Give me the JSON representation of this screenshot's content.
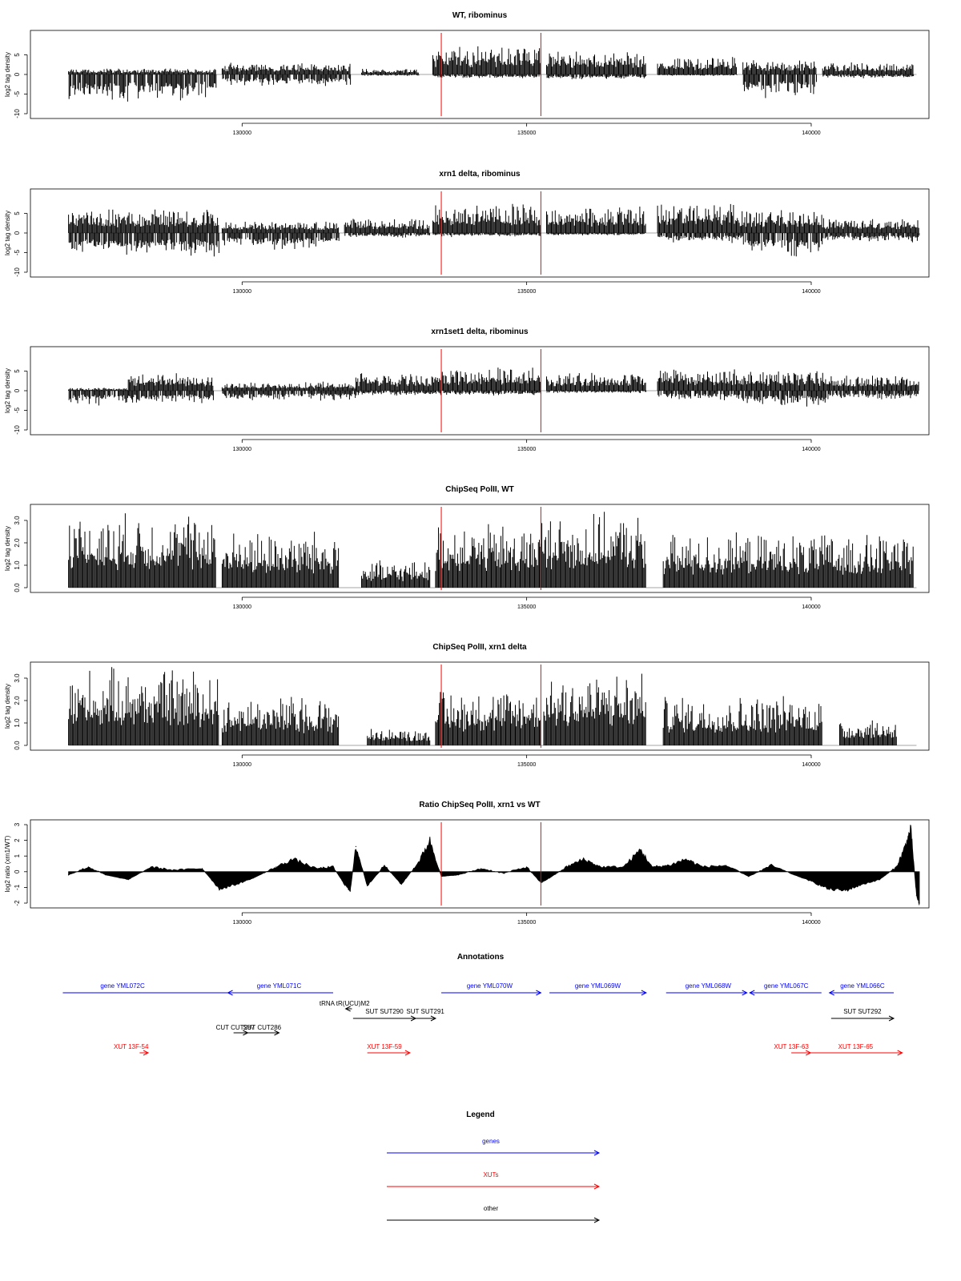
{
  "chart_data": [
    {
      "type": "bar",
      "title": "WT, ribominus",
      "xlabel": "",
      "ylabel": "log2 tag density",
      "x_range": [
        126900,
        141900
      ],
      "ylim": [
        -10,
        10
      ],
      "y_ticks": [
        -10,
        -5,
        0,
        5
      ],
      "x_ticks": [
        130000,
        135000,
        140000
      ],
      "x_tick_labels": [
        "130000",
        "135000",
        "140000"
      ],
      "red_lines": [
        133500,
        135250
      ],
      "segments": [
        {
          "x": [
            126950,
            129550
          ],
          "pos": 1,
          "neg": -6
        },
        {
          "x": [
            129650,
            131900
          ],
          "pos": 2,
          "neg": -2.5
        },
        {
          "x": [
            132100,
            133100
          ],
          "pos": 1,
          "neg": -0.3
        },
        {
          "x": [
            133350,
            135250
          ],
          "pos": 5,
          "neg": -0.8
        },
        {
          "x": [
            135350,
            137100
          ],
          "pos": 4,
          "neg": -1
        },
        {
          "x": [
            137300,
            138700
          ],
          "pos": 3,
          "neg": -0.3
        },
        {
          "x": [
            138800,
            140100
          ],
          "pos": 2.5,
          "neg": -5
        },
        {
          "x": [
            140200,
            141800
          ],
          "pos": 2,
          "neg": -0.8
        }
      ]
    },
    {
      "type": "bar",
      "title": "xrn1 delta, ribominus",
      "xlabel": "",
      "ylabel": "log2 tag density",
      "x_range": [
        126900,
        141900
      ],
      "ylim": [
        -10,
        10
      ],
      "y_ticks": [
        -10,
        -5,
        0,
        5
      ],
      "x_ticks": [
        130000,
        135000,
        140000
      ],
      "x_tick_labels": [
        "130000",
        "135000",
        "140000"
      ],
      "red_lines": [
        133500,
        135250
      ],
      "segments": [
        {
          "x": [
            126950,
            129600
          ],
          "pos": 4,
          "neg": -5
        },
        {
          "x": [
            129650,
            131700
          ],
          "pos": 2,
          "neg": -3.5
        },
        {
          "x": [
            131800,
            133300
          ],
          "pos": 2.5,
          "neg": -1
        },
        {
          "x": [
            133350,
            135250
          ],
          "pos": 5,
          "neg": -0.8
        },
        {
          "x": [
            135350,
            137100
          ],
          "pos": 4.5,
          "neg": -0.5
        },
        {
          "x": [
            137300,
            138800
          ],
          "pos": 5,
          "neg": -2
        },
        {
          "x": [
            138800,
            140200
          ],
          "pos": 4,
          "neg": -5
        },
        {
          "x": [
            140200,
            141900
          ],
          "pos": 2.5,
          "neg": -2
        }
      ]
    },
    {
      "type": "bar",
      "title": "xrn1set1 delta, ribominus",
      "xlabel": "",
      "ylabel": "log2 tag density",
      "x_range": [
        126900,
        141900
      ],
      "ylim": [
        -10,
        10
      ],
      "y_ticks": [
        -10,
        -5,
        0,
        5
      ],
      "x_ticks": [
        130000,
        135000,
        140000
      ],
      "x_tick_labels": [
        "130000",
        "135000",
        "140000"
      ],
      "red_lines": [
        133500,
        135250
      ],
      "segments": [
        {
          "x": [
            126950,
            128000
          ],
          "pos": 0.5,
          "neg": -3
        },
        {
          "x": [
            128000,
            129500
          ],
          "pos": 3,
          "neg": -3
        },
        {
          "x": [
            129650,
            132000
          ],
          "pos": 1.5,
          "neg": -2
        },
        {
          "x": [
            132000,
            133400
          ],
          "pos": 3,
          "neg": -1
        },
        {
          "x": [
            133400,
            135250
          ],
          "pos": 4,
          "neg": -1
        },
        {
          "x": [
            135350,
            137100
          ],
          "pos": 3,
          "neg": -0.5
        },
        {
          "x": [
            137300,
            138800
          ],
          "pos": 4,
          "neg": -2
        },
        {
          "x": [
            138800,
            140300
          ],
          "pos": 3.5,
          "neg": -3.5
        },
        {
          "x": [
            140300,
            141900
          ],
          "pos": 2.5,
          "neg": -2
        }
      ]
    },
    {
      "type": "bar",
      "title": "ChipSeq PolII, WT",
      "xlabel": "",
      "ylabel": "log2 tag density",
      "x_range": [
        126900,
        141900
      ],
      "ylim": [
        0,
        3.5
      ],
      "y_ticks": [
        0.0,
        1.0,
        2.0,
        3.0
      ],
      "y_tick_labels": [
        "0.0",
        "1.0",
        "2.0",
        "3.0"
      ],
      "x_ticks": [
        130000,
        135000,
        140000
      ],
      "x_tick_labels": [
        "130000",
        "135000",
        "140000"
      ],
      "red_lines": [
        133500,
        135250
      ],
      "segments": [
        {
          "x": [
            126950,
            129550
          ],
          "pos": 2.2,
          "neg": 0
        },
        {
          "x": [
            129650,
            131700
          ],
          "pos": 1.7,
          "neg": 0
        },
        {
          "x": [
            132100,
            133300
          ],
          "pos": 0.8,
          "neg": 0
        },
        {
          "x": [
            133400,
            135250
          ],
          "pos": 1.9,
          "neg": 0
        },
        {
          "x": [
            135250,
            137100
          ],
          "pos": 2.2,
          "neg": 0
        },
        {
          "x": [
            137400,
            141800
          ],
          "pos": 1.6,
          "neg": 0
        }
      ]
    },
    {
      "type": "bar",
      "title": "ChipSeq PolII, xrn1 delta",
      "xlabel": "",
      "ylabel": "log2 tag density",
      "x_range": [
        126900,
        141900
      ],
      "ylim": [
        0,
        3.5
      ],
      "y_ticks": [
        0.0,
        1.0,
        2.0,
        3.0
      ],
      "y_tick_labels": [
        "0.0",
        "1.0",
        "2.0",
        "3.0"
      ],
      "x_ticks": [
        130000,
        135000,
        140000
      ],
      "x_tick_labels": [
        "130000",
        "135000",
        "140000"
      ],
      "red_lines": [
        133500,
        135250
      ],
      "segments": [
        {
          "x": [
            126950,
            129600
          ],
          "pos": 2.3,
          "neg": 0
        },
        {
          "x": [
            129650,
            131700
          ],
          "pos": 1.5,
          "neg": 0
        },
        {
          "x": [
            132200,
            133300
          ],
          "pos": 0.5,
          "neg": 0
        },
        {
          "x": [
            133400,
            135250
          ],
          "pos": 1.7,
          "neg": 0
        },
        {
          "x": [
            135300,
            137100
          ],
          "pos": 2.2,
          "neg": 0
        },
        {
          "x": [
            137400,
            140200
          ],
          "pos": 1.5,
          "neg": 0
        },
        {
          "x": [
            140500,
            141500
          ],
          "pos": 0.8,
          "neg": 0
        }
      ]
    },
    {
      "type": "area",
      "title": "Ratio ChipSeq PolII, xrn1 vs WT",
      "xlabel": "",
      "ylabel": "log2 ratio (xrn1/WT)",
      "x_range": [
        126900,
        141900
      ],
      "ylim": [
        -2,
        3
      ],
      "y_ticks": [
        -2,
        -1,
        0,
        1,
        2,
        3
      ],
      "x_ticks": [
        130000,
        135000,
        140000
      ],
      "x_tick_labels": [
        "130000",
        "135000",
        "140000"
      ],
      "red_lines": [
        133500,
        135250
      ],
      "x": [
        126950,
        127300,
        127600,
        128000,
        128400,
        128800,
        129300,
        129600,
        129900,
        130200,
        130600,
        130900,
        131300,
        131600,
        131800,
        131900,
        132000,
        132200,
        132500,
        132800,
        133100,
        133300,
        133500,
        133800,
        134200,
        134600,
        135000,
        135250,
        135400,
        135700,
        136000,
        136300,
        136700,
        137000,
        137200,
        137500,
        137800,
        138100,
        138500,
        138900,
        139300,
        139700,
        140000,
        140300,
        140600,
        140900,
        141200,
        141500,
        141650,
        141750,
        141850,
        141900
      ],
      "y": [
        -0.2,
        0.3,
        -0.2,
        -0.5,
        0.3,
        0.1,
        0.2,
        -1.1,
        -0.8,
        -0.4,
        0.3,
        0.8,
        0.2,
        0.3,
        -0.8,
        -1.2,
        1.6,
        -0.9,
        0.4,
        -0.8,
        0.6,
        2.0,
        -0.3,
        -0.2,
        0.2,
        -0.1,
        0.3,
        -0.7,
        -0.4,
        0.3,
        0.8,
        0.3,
        0.3,
        1.4,
        0.3,
        0.4,
        0.8,
        0.3,
        0.4,
        -0.3,
        0.4,
        -0.2,
        -0.6,
        -1.1,
        -1.2,
        -0.8,
        -0.5,
        0.3,
        1.6,
        2.7,
        -1.5,
        -2.0
      ]
    }
  ],
  "annotations": {
    "title": "Annotations",
    "x_range": [
      126900,
      141900
    ],
    "items": [
      {
        "label": "gene YML072C",
        "x": [
          126850,
          129980
        ],
        "dir": "none",
        "row": 0,
        "color": "#0000ff",
        "label_x": 127900
      },
      {
        "label": "gene YML071C",
        "x": [
          129750,
          131600
        ],
        "dir": "left",
        "row": 0,
        "color": "#0000ff",
        "label_x": 130650
      },
      {
        "label": "gene YML070W",
        "x": [
          133500,
          135250
        ],
        "dir": "right",
        "row": 0,
        "color": "#0000ff",
        "label_x": 134350
      },
      {
        "label": "gene YML069W",
        "x": [
          135400,
          137100
        ],
        "dir": "right",
        "row": 0,
        "color": "#0000ff",
        "label_x": 136250
      },
      {
        "label": "gene YML068W",
        "x": [
          137450,
          138870
        ],
        "dir": "right",
        "row": 0,
        "color": "#0000ff",
        "label_x": 138190
      },
      {
        "label": "gene YML067C",
        "x": [
          138920,
          140180
        ],
        "dir": "left",
        "row": 0,
        "color": "#0000ff",
        "label_x": 139560
      },
      {
        "label": "gene YML066C",
        "x": [
          140320,
          141450
        ],
        "dir": "left",
        "row": 0,
        "color": "#0000ff",
        "label_x": 140900
      },
      {
        "label": "tRNA tR(UCU)M2",
        "x": [
          131820,
          131930
        ],
        "dir": "left",
        "row": 1,
        "color": "#000000",
        "label_x": 131800
      },
      {
        "label": "SUT SUT290",
        "x": [
          131950,
          133050
        ],
        "dir": "right",
        "row": 2,
        "color": "#000000",
        "label_x": 132500
      },
      {
        "label": "SUT SUT291",
        "x": [
          133050,
          133400
        ],
        "dir": "right",
        "row": 2,
        "color": "#000000",
        "label_x": 133220
      },
      {
        "label": "SUT SUT292",
        "x": [
          140350,
          141450
        ],
        "dir": "right",
        "row": 2,
        "color": "#000000",
        "label_x": 140900
      },
      {
        "label": "CUT CUT287",
        "x": [
          129850,
          130100
        ],
        "dir": "right",
        "row": 3,
        "color": "#000000",
        "label_x": 129880
      },
      {
        "label": "SUT CUT286",
        "x": [
          130100,
          130650
        ],
        "dir": "right",
        "row": 3,
        "color": "#000000",
        "label_x": 130350
      },
      {
        "label": "XUT 13F-54",
        "x": [
          128250,
          128150
        ],
        "dir": "right",
        "row": 4,
        "color": "#ff0000",
        "label_x": 128050,
        "arrow_x": [
          128200,
          128350
        ]
      },
      {
        "label": "XUT 13F-59",
        "x": [
          132200,
          132950
        ],
        "dir": "right",
        "row": 4,
        "color": "#ff0000",
        "label_x": 132500
      },
      {
        "label": "XUT 13F-63",
        "x": [
          139650,
          139990
        ],
        "dir": "right",
        "row": 4,
        "color": "#ff0000",
        "label_x": 139650
      },
      {
        "label": "XUT 13F-65",
        "x": [
          139990,
          141600
        ],
        "dir": "right",
        "row": 4,
        "color": "#ff0000",
        "label_x": 140780
      }
    ]
  },
  "legend": {
    "title": "Legend",
    "items": [
      {
        "label": "genes",
        "color": "#0000ff"
      },
      {
        "label": "XUTs",
        "color": "#ff0000"
      },
      {
        "label": "other",
        "color": "#000000"
      }
    ]
  }
}
